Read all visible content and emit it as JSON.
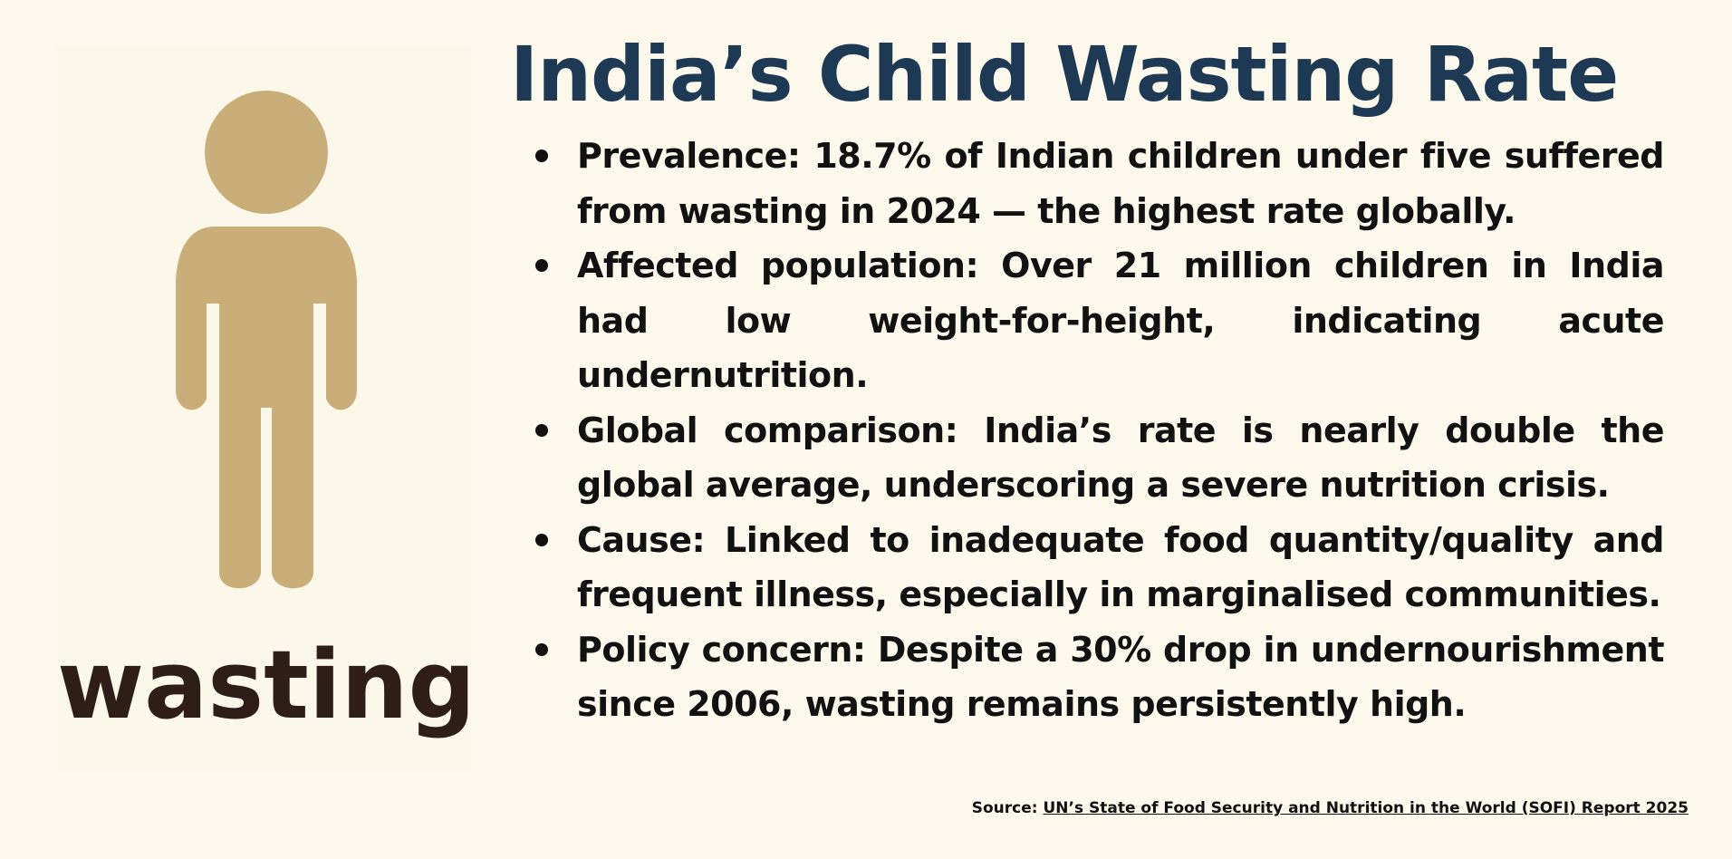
{
  "title": "India’s Child Wasting Rate",
  "illustration": {
    "icon": "child-figure-icon",
    "label": "wasting",
    "figure_color": "#c9ae7a",
    "label_color": "#2e1e17"
  },
  "bullets": [
    {
      "text": "Prevalence: 18.7% of Indian children under five suffered from wasting in 2024 — the highest rate globally."
    },
    {
      "text": "Affected population: Over 21 million children in India had low weight-for-height, indicating acute undernutrition."
    },
    {
      "text": "Global comparison: India’s rate is nearly double the global average, underscoring a severe nutrition crisis."
    },
    {
      "text": "Cause: Linked to inadequate food quantity/quality and frequent illness, especially in marginalised communities."
    },
    {
      "text": "Policy concern: Despite a 30% drop in undernourishment since 2006, wasting remains persistently high."
    }
  ],
  "source": {
    "prefix": "Source:",
    "link_text": "UN’s State of Food Security and Nutrition in the World (SOFI) Report 2025"
  },
  "colors": {
    "background": "#fcf8ec",
    "title": "#1d3954",
    "text": "#111111"
  }
}
